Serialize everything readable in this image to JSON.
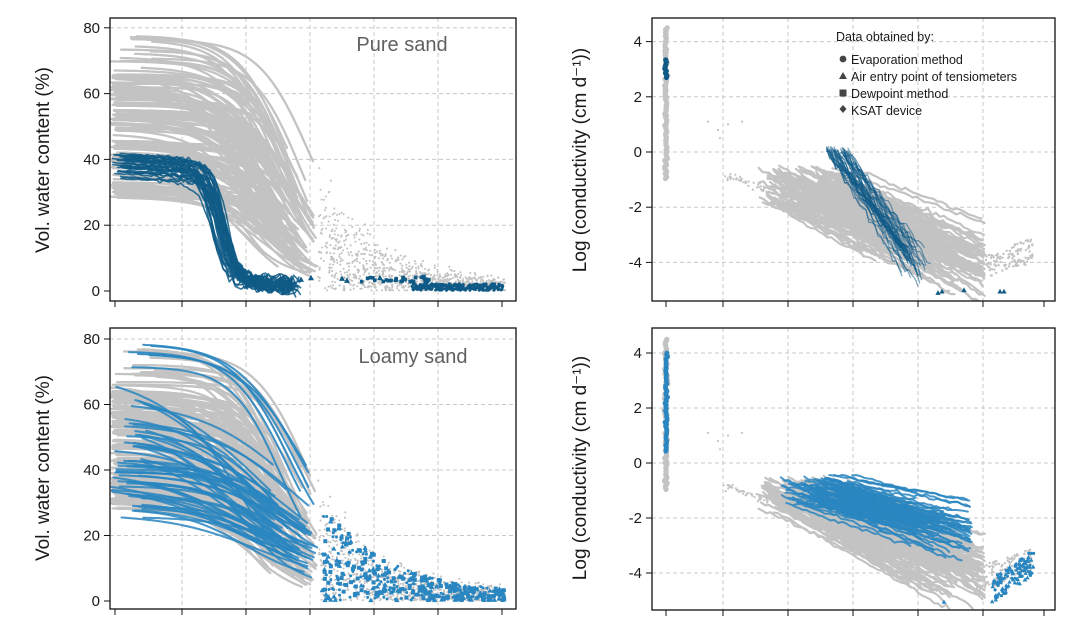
{
  "colors": {
    "background": "#c3c3c3",
    "pure_sand": "#0f5a86",
    "loamy_sand": "#2a86c0",
    "grid": "#c8c8c8",
    "frame": "#111111"
  },
  "legend": {
    "title": "Data obtained by:",
    "items": [
      {
        "label": "Evaporation method",
        "marker": "circle"
      },
      {
        "label": "Air entry point of tensiometers",
        "marker": "triangle"
      },
      {
        "label": "Dewpoint method",
        "marker": "square"
      },
      {
        "label": "KSAT device",
        "marker": "diamond"
      }
    ]
  },
  "chart_data": [
    {
      "type": "line",
      "panel": "top-left",
      "title": "Pure sand",
      "ylabel": "Vol. water content (%)",
      "xlabel": "",
      "ylim": [
        0,
        80
      ],
      "yticks": [
        "0",
        "20",
        "40",
        "60",
        "80"
      ],
      "grid": true,
      "series": [
        {
          "role": "background",
          "color": "#c3c3c3",
          "x": [
            0,
            0.15,
            0.3,
            0.45,
            0.55,
            0.7,
            0.9,
            1.0
          ],
          "y": [
            48,
            47,
            45,
            40,
            28,
            12,
            3,
            1
          ]
        },
        {
          "role": "highlight",
          "color": "#0f5a86",
          "x": [
            0,
            0.1,
            0.2,
            0.25,
            0.3,
            0.35,
            0.4,
            0.5
          ],
          "y": [
            40,
            38,
            36,
            35,
            20,
            8,
            5,
            4
          ]
        }
      ]
    },
    {
      "type": "scatter",
      "panel": "top-right",
      "title": "",
      "ylabel": "Log (conductivity (cm d⁻¹))",
      "xlabel": "",
      "ylim": [
        -5,
        4.5
      ],
      "yticks": [
        "-4",
        "-2",
        "0",
        "2",
        "4"
      ],
      "grid": true,
      "series": [
        {
          "role": "background",
          "color": "#c3c3c3",
          "x": [
            0.3,
            0.45,
            0.6,
            0.75,
            0.9
          ],
          "y": [
            -0.8,
            -1.2,
            -1.8,
            -2.6,
            -3.5
          ]
        },
        {
          "role": "highlight",
          "color": "#0f5a86",
          "x": [
            0.45,
            0.5,
            0.55,
            0.6
          ],
          "y": [
            0,
            -1.5,
            -3,
            -4
          ]
        }
      ],
      "legend_position": "top-right"
    },
    {
      "type": "line",
      "panel": "bottom-left",
      "title": "Loamy sand",
      "ylabel": "Vol. water content (%)",
      "xlabel": "",
      "ylim": [
        0,
        80
      ],
      "yticks": [
        "0",
        "20",
        "40",
        "60",
        "80"
      ],
      "grid": true,
      "series": [
        {
          "role": "background",
          "color": "#c3c3c3",
          "x": [
            0,
            0.15,
            0.3,
            0.45,
            0.55,
            0.7,
            0.9,
            1.0
          ],
          "y": [
            48,
            45,
            40,
            32,
            20,
            12,
            4,
            1
          ]
        },
        {
          "role": "highlight",
          "color": "#2a86c0",
          "x": [
            0,
            0.15,
            0.3,
            0.45,
            0.55,
            0.7,
            0.9,
            1.0
          ],
          "y": [
            45,
            40,
            32,
            22,
            16,
            10,
            4,
            1
          ]
        }
      ]
    },
    {
      "type": "scatter",
      "panel": "bottom-right",
      "title": "",
      "ylabel": "Log (conductivity (cm d⁻¹))",
      "xlabel": "",
      "ylim": [
        -5,
        4.5
      ],
      "yticks": [
        "-4",
        "-2",
        "0",
        "2",
        "4"
      ],
      "grid": true,
      "series": [
        {
          "role": "background",
          "color": "#c3c3c3",
          "x": [
            0.3,
            0.45,
            0.6,
            0.75,
            0.9
          ],
          "y": [
            -0.8,
            -1.5,
            -2.0,
            -2.7,
            -3.5
          ]
        },
        {
          "role": "highlight",
          "color": "#2a86c0",
          "x": [
            0.3,
            0.45,
            0.6,
            0.75,
            0.9
          ],
          "y": [
            -1.2,
            -1.4,
            -1.8,
            -2.4,
            -4.5
          ]
        }
      ]
    }
  ]
}
